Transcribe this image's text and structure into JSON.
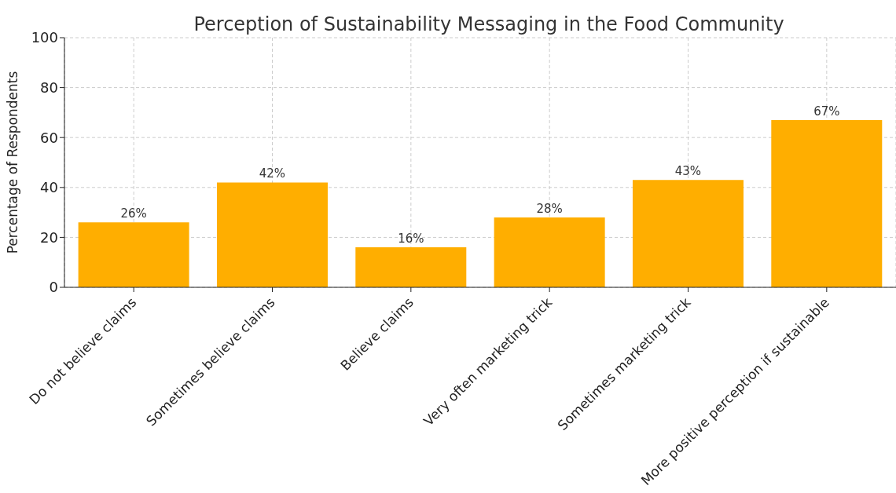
{
  "chart_data": {
    "type": "bar",
    "title": "Perception of Sustainability Messaging in the Food Community",
    "ylabel": "Percentage of Respondents",
    "categories": [
      "Do not believe claims",
      "Sometimes believe claims",
      "Believe claims",
      "Very often marketing trick",
      "Sometimes marketing trick",
      "More positive perception if sustainable"
    ],
    "values": [
      26,
      42,
      16,
      28,
      43,
      67
    ],
    "value_labels": [
      "26%",
      "42%",
      "16%",
      "28%",
      "43%",
      "67%"
    ],
    "color": "#ffae00",
    "ylim": [
      0,
      100
    ],
    "yticks": [
      0,
      20,
      40,
      60,
      80,
      100
    ],
    "grid": true
  }
}
